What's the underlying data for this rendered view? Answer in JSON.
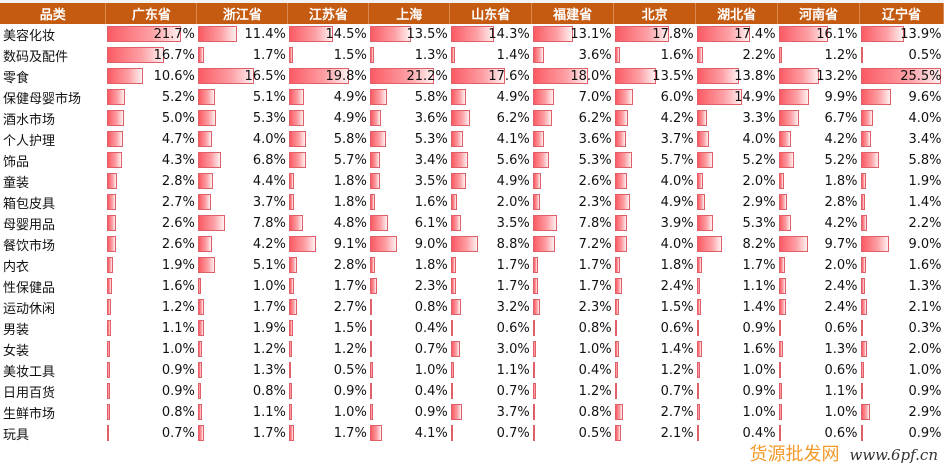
{
  "header": {
    "category_label": "品类",
    "provinces": [
      "广东省",
      "浙江省",
      "江苏省",
      "上海",
      "山东省",
      "福建省",
      "北京",
      "湖北省",
      "河南省",
      "辽宁省"
    ]
  },
  "bar_scale_max_percent": 25.5,
  "colors": {
    "header_bg": "#c55a11",
    "bar": "#fb5b64"
  },
  "rows": [
    {
      "category": "美容化妆",
      "values": [
        "21.7%",
        "11.4%",
        "14.5%",
        "13.5%",
        "14.3%",
        "13.1%",
        "17.8%",
        "17.4%",
        "16.1%",
        "13.9%"
      ]
    },
    {
      "category": "数码及配件",
      "values": [
        "16.7%",
        "1.7%",
        "1.5%",
        "1.3%",
        "1.4%",
        "3.6%",
        "1.6%",
        "2.2%",
        "1.2%",
        "0.5%"
      ]
    },
    {
      "category": "零食",
      "values": [
        "10.6%",
        "16.5%",
        "19.8%",
        "21.2%",
        "17.6%",
        "18.0%",
        "13.5%",
        "13.8%",
        "13.2%",
        "25.5%"
      ]
    },
    {
      "category": "保健母婴市场",
      "values": [
        "5.2%",
        "5.1%",
        "4.9%",
        "5.8%",
        "4.9%",
        "7.0%",
        "6.0%",
        "14.9%",
        "9.9%",
        "9.6%"
      ]
    },
    {
      "category": "酒水市场",
      "values": [
        "5.0%",
        "5.3%",
        "4.9%",
        "3.6%",
        "6.2%",
        "6.2%",
        "4.2%",
        "3.3%",
        "6.7%",
        "4.0%"
      ]
    },
    {
      "category": "个人护理",
      "values": [
        "4.7%",
        "4.0%",
        "5.8%",
        "5.3%",
        "4.1%",
        "3.6%",
        "3.7%",
        "4.0%",
        "4.2%",
        "3.4%"
      ]
    },
    {
      "category": "饰品",
      "values": [
        "4.3%",
        "6.8%",
        "5.7%",
        "3.4%",
        "5.6%",
        "5.3%",
        "5.7%",
        "5.2%",
        "5.2%",
        "5.8%"
      ]
    },
    {
      "category": "童装",
      "values": [
        "2.8%",
        "4.4%",
        "1.8%",
        "3.5%",
        "4.9%",
        "2.6%",
        "4.0%",
        "2.0%",
        "1.8%",
        "1.9%"
      ]
    },
    {
      "category": "箱包皮具",
      "values": [
        "2.7%",
        "3.7%",
        "1.8%",
        "1.6%",
        "2.0%",
        "2.3%",
        "4.9%",
        "2.9%",
        "2.8%",
        "1.4%"
      ]
    },
    {
      "category": "母婴用品",
      "values": [
        "2.6%",
        "7.8%",
        "4.8%",
        "6.1%",
        "3.5%",
        "7.8%",
        "3.9%",
        "5.3%",
        "4.2%",
        "2.2%"
      ]
    },
    {
      "category": "餐饮市场",
      "values": [
        "2.6%",
        "4.2%",
        "9.1%",
        "9.0%",
        "8.8%",
        "7.2%",
        "4.0%",
        "8.2%",
        "9.7%",
        "9.0%"
      ]
    },
    {
      "category": "内衣",
      "values": [
        "1.9%",
        "5.1%",
        "2.8%",
        "1.8%",
        "1.7%",
        "1.7%",
        "1.8%",
        "1.7%",
        "2.0%",
        "1.6%"
      ]
    },
    {
      "category": "性保健品",
      "values": [
        "1.6%",
        "1.0%",
        "1.7%",
        "2.3%",
        "1.7%",
        "1.7%",
        "2.4%",
        "1.1%",
        "2.4%",
        "1.3%"
      ]
    },
    {
      "category": "运动休闲",
      "values": [
        "1.2%",
        "1.7%",
        "2.7%",
        "0.8%",
        "3.2%",
        "2.3%",
        "1.5%",
        "1.4%",
        "2.4%",
        "2.1%"
      ]
    },
    {
      "category": "男装",
      "values": [
        "1.1%",
        "1.9%",
        "1.5%",
        "0.4%",
        "0.6%",
        "0.8%",
        "0.6%",
        "0.9%",
        "0.6%",
        "0.3%"
      ]
    },
    {
      "category": "女装",
      "values": [
        "1.0%",
        "1.2%",
        "1.2%",
        "0.7%",
        "3.0%",
        "1.0%",
        "1.4%",
        "1.6%",
        "1.3%",
        "2.0%"
      ]
    },
    {
      "category": "美妆工具",
      "values": [
        "0.9%",
        "1.3%",
        "0.5%",
        "1.0%",
        "1.1%",
        "0.4%",
        "1.2%",
        "1.0%",
        "0.6%",
        "1.0%"
      ]
    },
    {
      "category": "日用百货",
      "values": [
        "0.9%",
        "0.8%",
        "0.9%",
        "0.4%",
        "0.7%",
        "1.2%",
        "0.7%",
        "0.9%",
        "1.1%",
        "0.9%"
      ]
    },
    {
      "category": "生鲜市场",
      "values": [
        "0.8%",
        "1.1%",
        "1.0%",
        "0.9%",
        "3.7%",
        "0.8%",
        "2.7%",
        "1.0%",
        "1.0%",
        "2.9%"
      ]
    },
    {
      "category": "玩具",
      "values": [
        "0.7%",
        "1.7%",
        "1.7%",
        "4.1%",
        "0.7%",
        "0.5%",
        "2.1%",
        "0.4%",
        "0.6%",
        "0.9%"
      ]
    }
  ],
  "watermark": {
    "title": "货源批发网",
    "url": "www.6pf.cn"
  }
}
